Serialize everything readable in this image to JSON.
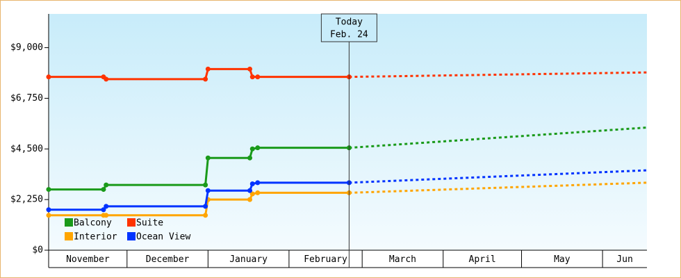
{
  "chart_data": {
    "type": "line",
    "annotation": {
      "title": "Today",
      "date": "Feb. 24",
      "x": 115
    },
    "xlim": [
      0,
      229
    ],
    "xticks": [
      {
        "value": 0,
        "label": "November"
      },
      {
        "value": 30,
        "label": "December"
      },
      {
        "value": 61,
        "label": "January"
      },
      {
        "value": 92,
        "label": "February"
      },
      {
        "value": 120,
        "label": "March"
      },
      {
        "value": 151,
        "label": "April"
      },
      {
        "value": 181,
        "label": "May"
      },
      {
        "value": 212,
        "label": "Jun"
      }
    ],
    "ylim": [
      0,
      10500
    ],
    "yticks": [
      {
        "value": 0,
        "label": "$0"
      },
      {
        "value": 2250,
        "label": "$2,250"
      },
      {
        "value": 4500,
        "label": "$4,500"
      },
      {
        "value": 6750,
        "label": "$6,750"
      },
      {
        "value": 9000,
        "label": "$9,000"
      }
    ],
    "series": [
      {
        "name": "Balcony",
        "color": "#1a9a1a",
        "x": [
          0,
          21,
          22,
          60,
          61,
          77,
          78,
          80,
          115,
          229
        ],
        "values": [
          2700,
          2700,
          2900,
          2900,
          4100,
          4100,
          4500,
          4550,
          4550,
          5450
        ]
      },
      {
        "name": "Suite",
        "color": "#ff3300",
        "x": [
          0,
          21,
          22,
          60,
          61,
          77,
          78,
          80,
          115,
          229
        ],
        "values": [
          7700,
          7700,
          7600,
          7600,
          8050,
          8050,
          7700,
          7700,
          7700,
          7900
        ]
      },
      {
        "name": "Interior",
        "color": "#ffa500",
        "x": [
          0,
          21,
          22,
          60,
          61,
          77,
          78,
          80,
          115,
          229
        ],
        "values": [
          1550,
          1550,
          1550,
          1550,
          2250,
          2250,
          2500,
          2550,
          2550,
          3000
        ]
      },
      {
        "name": "Ocean View",
        "color": "#0033ff",
        "x": [
          0,
          21,
          22,
          60,
          61,
          77,
          78,
          80,
          115,
          229
        ],
        "values": [
          1800,
          1800,
          1950,
          1950,
          2650,
          2650,
          2950,
          3000,
          3000,
          3550
        ]
      }
    ]
  }
}
